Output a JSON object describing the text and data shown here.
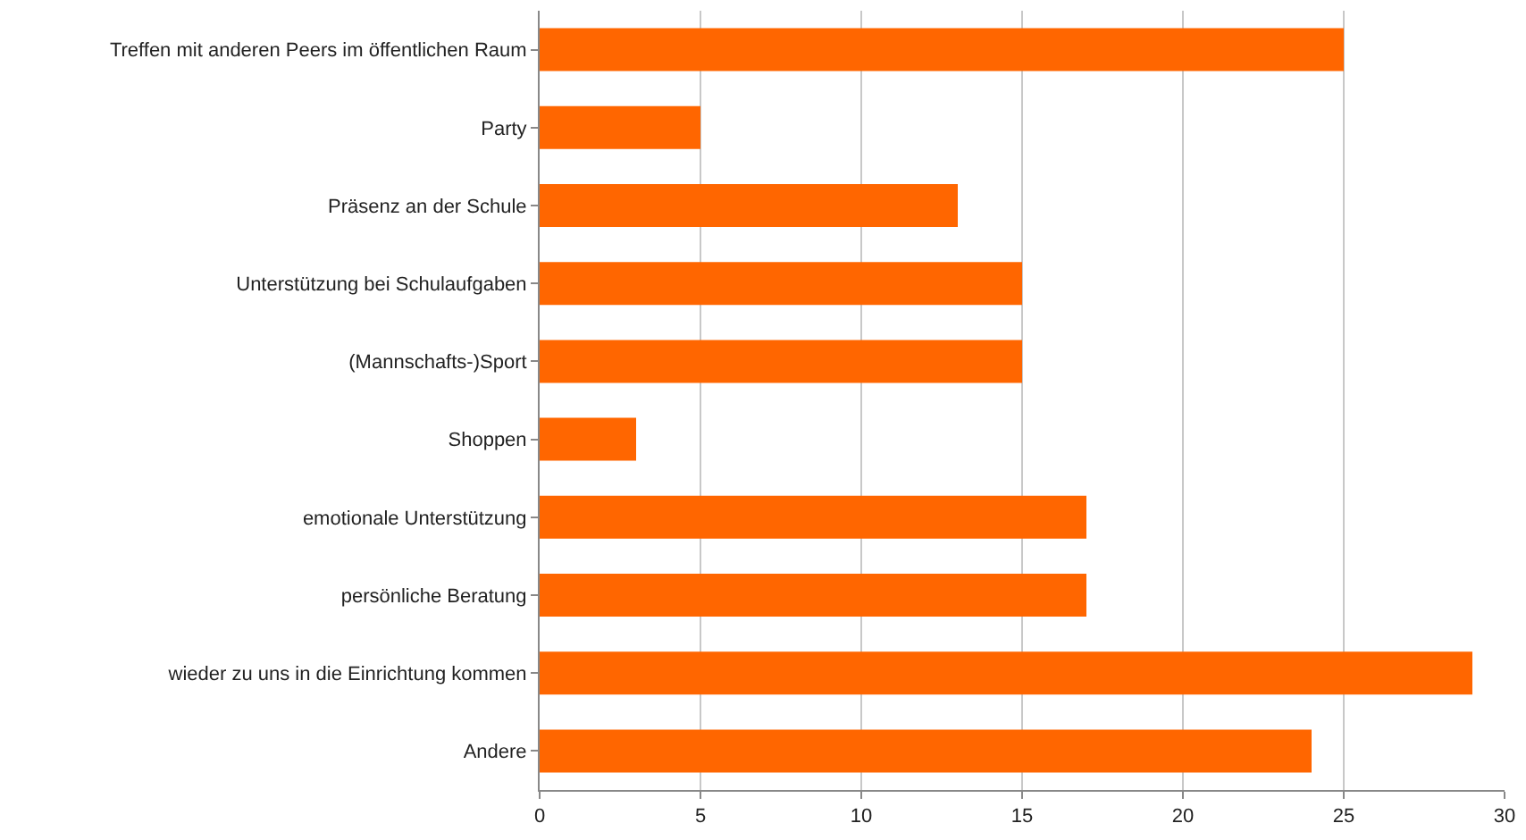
{
  "chart_data": {
    "type": "bar",
    "orientation": "horizontal",
    "categories": [
      "Treffen mit anderen Peers im öffentlichen Raum",
      "Party",
      "Präsenz an der Schule",
      "Unterstützung bei Schulaufgaben",
      "(Mannschafts-)Sport",
      "Shoppen",
      "emotionale Unterstützung",
      "persönliche Beratung",
      "wieder zu uns in die Einrichtung kommen",
      "Andere"
    ],
    "values": [
      25,
      5,
      13,
      15,
      15,
      3,
      17,
      17,
      29,
      24
    ],
    "color": "#ff6600",
    "xlim": [
      0,
      30
    ],
    "xticks": [
      0,
      5,
      10,
      15,
      20,
      25,
      30
    ],
    "grid": "x"
  }
}
